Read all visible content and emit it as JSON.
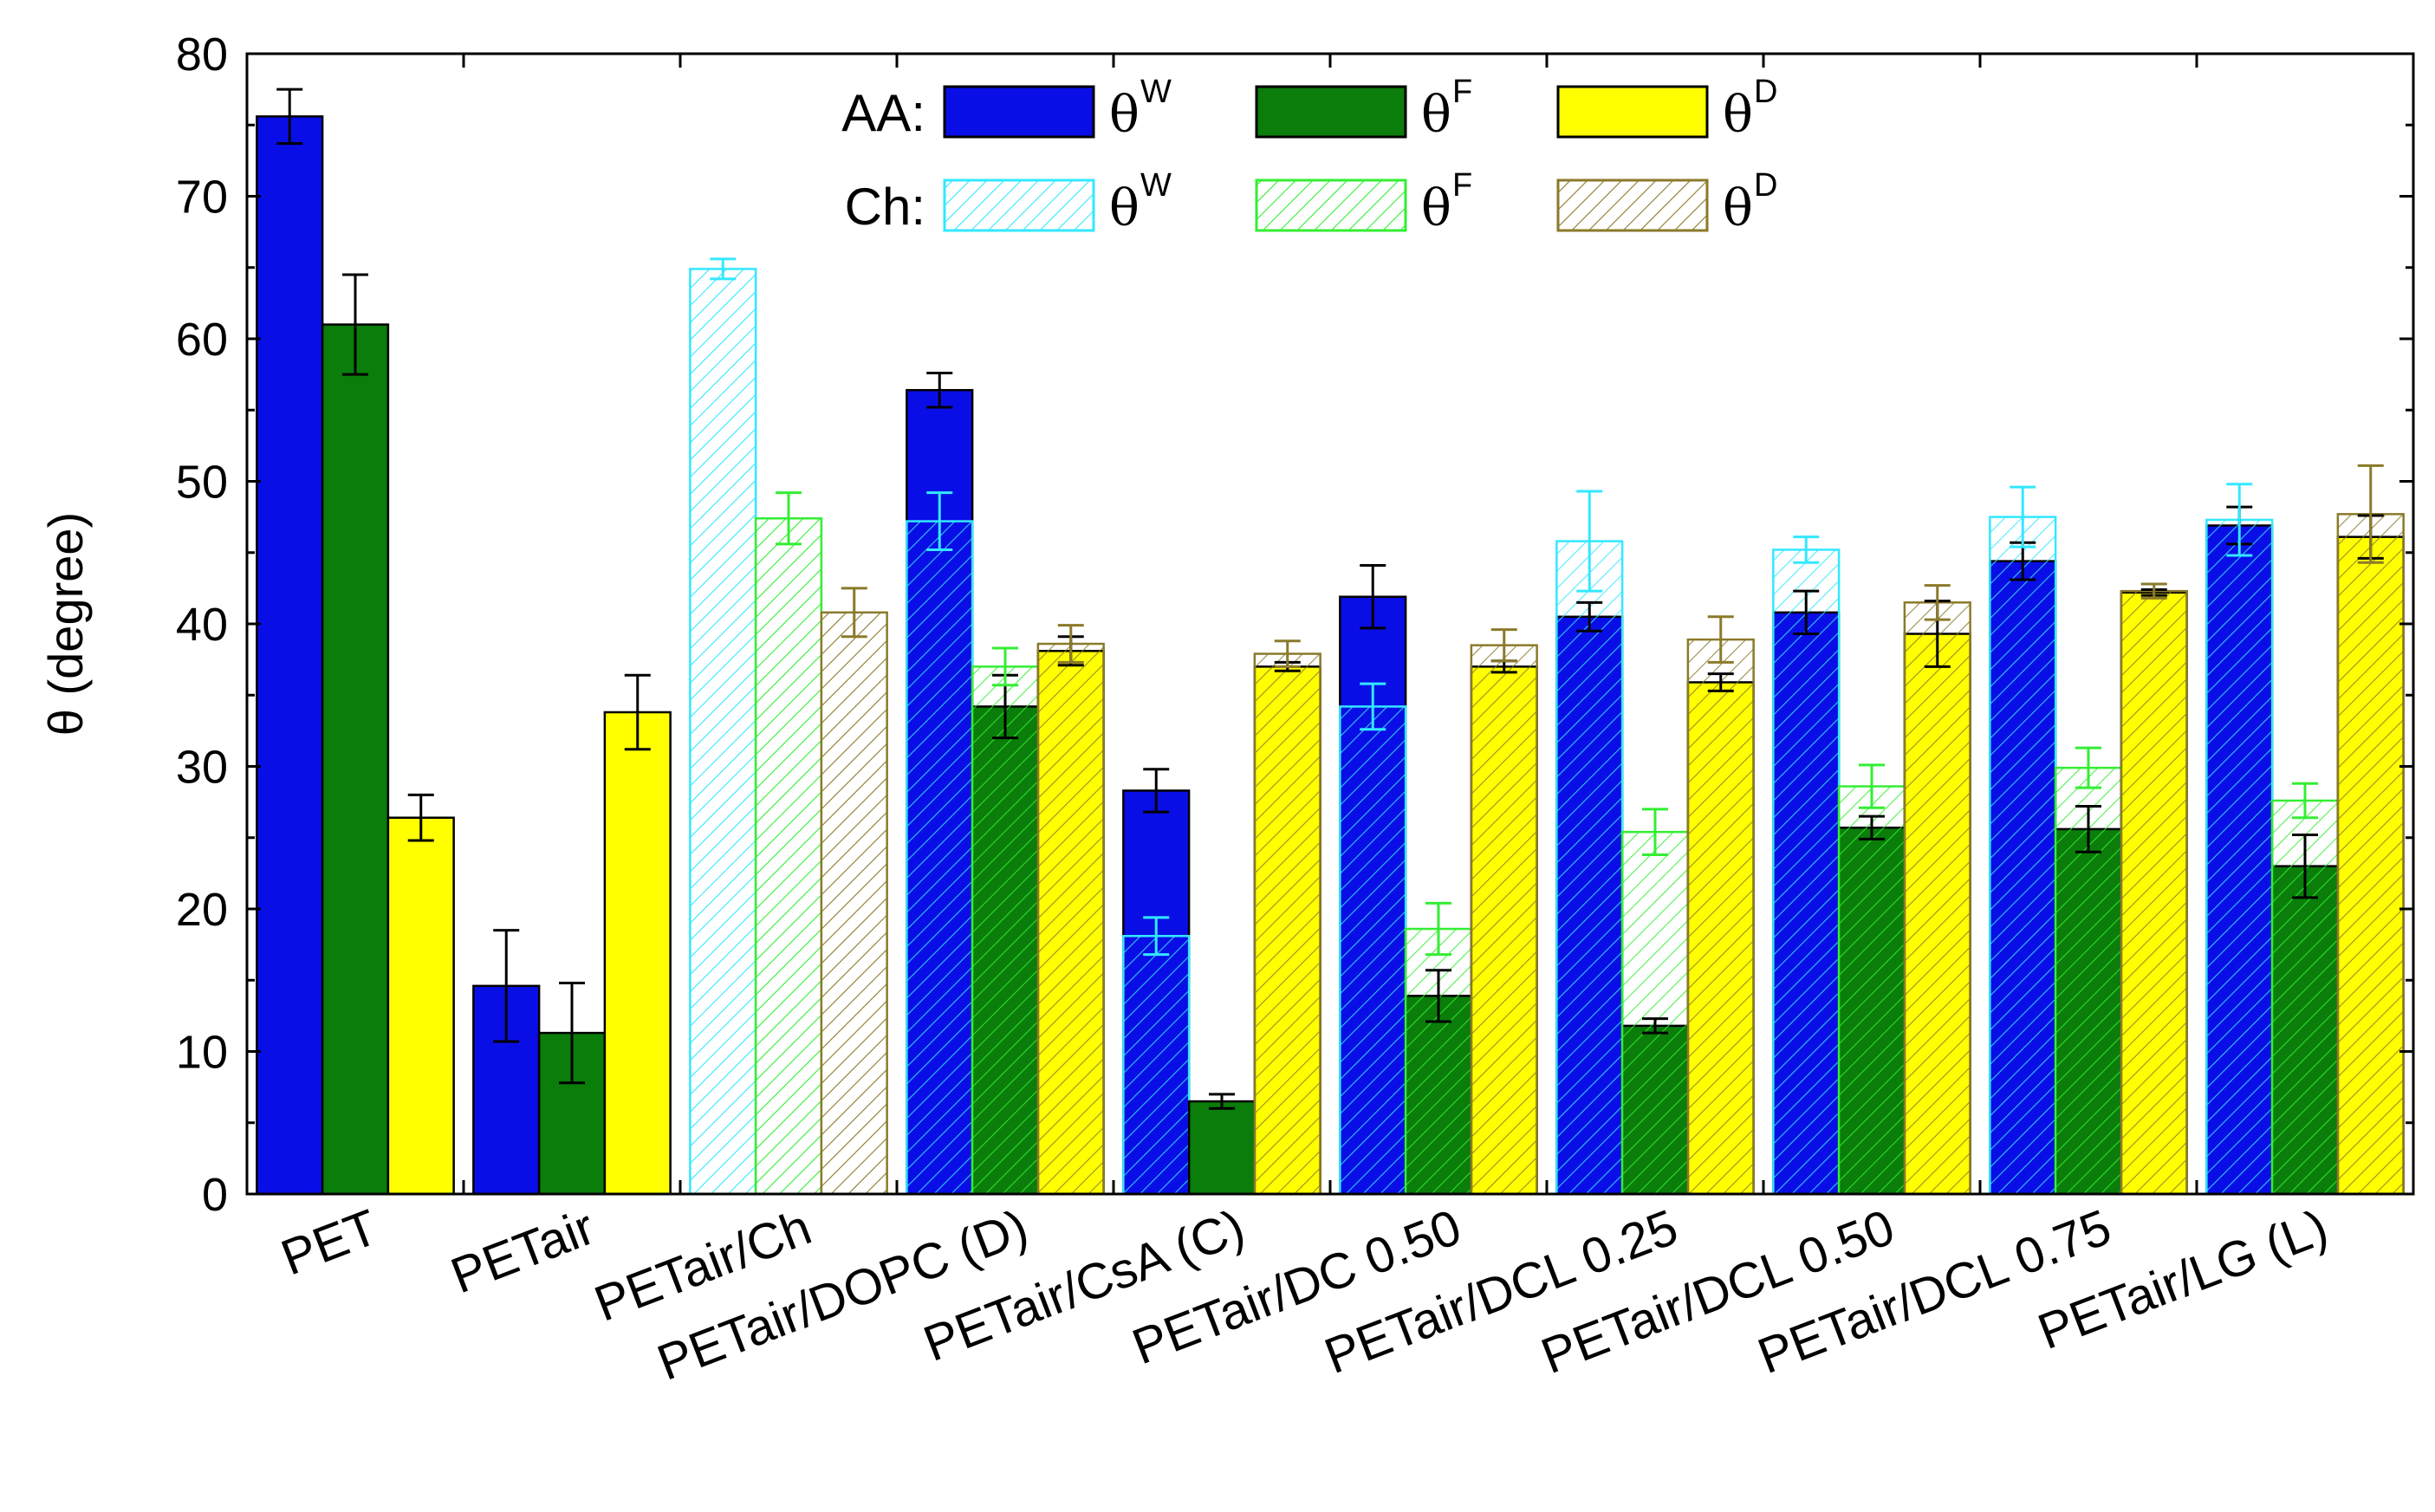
{
  "chart_data": {
    "type": "bar",
    "ylabel": "θ (degree)",
    "ylim": [
      0,
      80
    ],
    "yticks": [
      "0",
      "10",
      "20",
      "30",
      "40",
      "50",
      "60",
      "70",
      "80"
    ],
    "grid": false,
    "legend_position": "top-center",
    "legend": {
      "rows": [
        {
          "label": "AA:",
          "style": "solid",
          "items": [
            {
              "symbol": "θ",
              "sup": "W",
              "fill": "#0a0ee6",
              "stroke": "#000000"
            },
            {
              "symbol": "θ",
              "sup": "F",
              "fill": "#0a7d0a",
              "stroke": "#000000"
            },
            {
              "symbol": "θ",
              "sup": "D",
              "fill": "#ffff00",
              "stroke": "#000000"
            }
          ]
        },
        {
          "label": "Ch:",
          "style": "hatched",
          "items": [
            {
              "symbol": "θ",
              "sup": "W",
              "fill": "#ffffff",
              "stroke": "#33e8ff"
            },
            {
              "symbol": "θ",
              "sup": "F",
              "fill": "#ffffff",
              "stroke": "#33ee33"
            },
            {
              "symbol": "θ",
              "sup": "D",
              "fill": "#ffffff",
              "stroke": "#8a7a2a"
            }
          ]
        }
      ]
    },
    "categories": [
      "PET",
      "PETair",
      "PETair/Ch",
      "PETair/DOPC (D)",
      "PETair/CsA (C)",
      "PETair/DC 0.50",
      "PETair/DCL 0.25",
      "PETair/DCL 0.50",
      "PETair/DCL 0.75",
      "PETair/LG (L)"
    ],
    "series": [
      {
        "group": "AA",
        "sup": "W",
        "color": "#0a0ee6",
        "values": [
          75.6,
          14.6,
          null,
          56.4,
          28.3,
          41.9,
          40.5,
          40.8,
          44.4,
          46.9
        ],
        "errors": [
          1.9,
          3.9,
          null,
          1.2,
          1.5,
          2.2,
          1.0,
          1.5,
          1.3,
          1.3
        ]
      },
      {
        "group": "AA",
        "sup": "F",
        "color": "#0a7d0a",
        "values": [
          61.0,
          11.3,
          null,
          34.2,
          6.5,
          13.9,
          11.8,
          25.7,
          25.6,
          23.0
        ],
        "errors": [
          3.5,
          3.5,
          null,
          2.2,
          0.5,
          1.8,
          0.5,
          0.8,
          1.6,
          2.2
        ]
      },
      {
        "group": "AA",
        "sup": "D",
        "color": "#ffff00",
        "values": [
          26.4,
          33.8,
          null,
          38.1,
          37.0,
          37.0,
          35.9,
          39.3,
          42.2,
          46.1
        ],
        "errors": [
          1.6,
          2.6,
          null,
          1.0,
          0.3,
          0.4,
          0.6,
          2.3,
          0.2,
          1.5
        ]
      },
      {
        "group": "Ch",
        "sup": "W",
        "color": "#33e8ff",
        "values": [
          null,
          null,
          64.9,
          47.2,
          18.1,
          34.2,
          45.8,
          45.2,
          47.5,
          47.3
        ],
        "errors": [
          null,
          null,
          0.7,
          2.0,
          1.3,
          1.6,
          3.5,
          0.9,
          2.1,
          2.5
        ]
      },
      {
        "group": "Ch",
        "sup": "F",
        "color": "#33ee33",
        "values": [
          null,
          null,
          47.4,
          37.0,
          null,
          18.6,
          25.4,
          28.6,
          29.9,
          27.6
        ],
        "errors": [
          null,
          null,
          1.8,
          1.3,
          null,
          1.8,
          1.6,
          1.5,
          1.4,
          1.2
        ]
      },
      {
        "group": "Ch",
        "sup": "D",
        "color": "#8a7a2a",
        "values": [
          null,
          null,
          40.8,
          38.6,
          37.9,
          38.5,
          38.9,
          41.5,
          42.3,
          47.7
        ],
        "errors": [
          null,
          null,
          1.7,
          1.3,
          0.9,
          1.1,
          1.6,
          1.2,
          0.5,
          3.4
        ]
      }
    ]
  }
}
